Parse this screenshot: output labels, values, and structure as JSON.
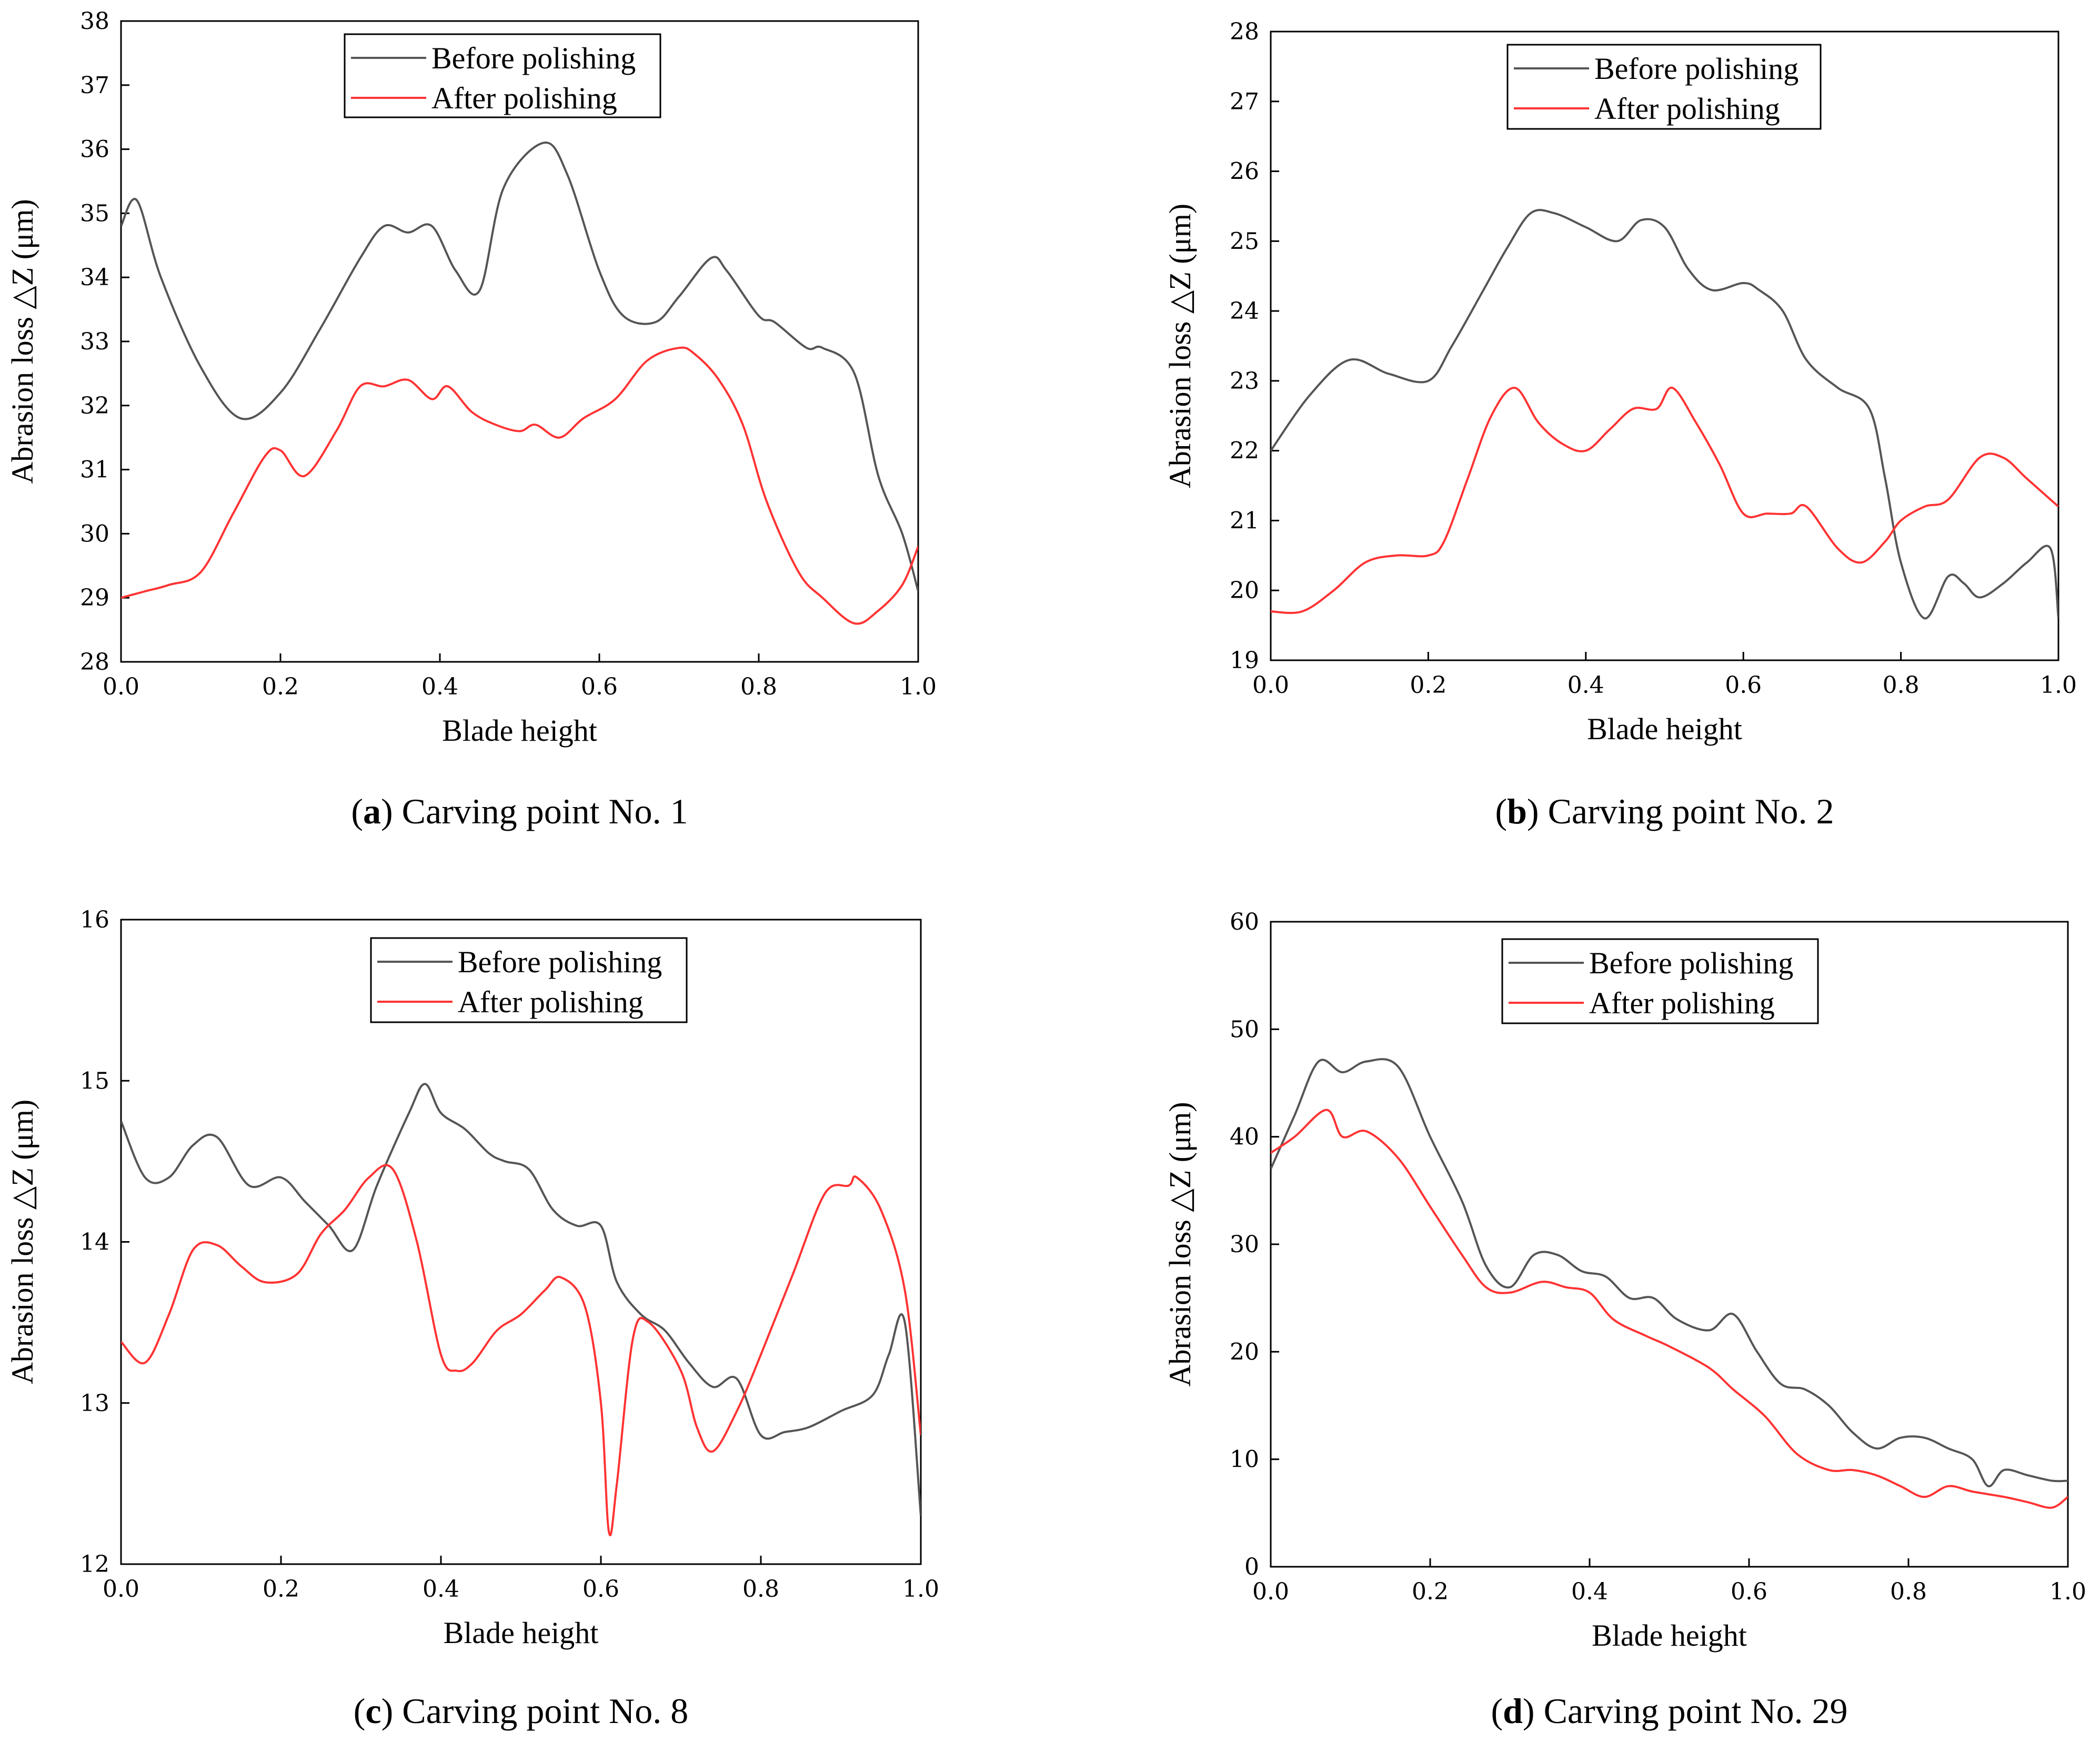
{
  "colors": {
    "before": "#555555",
    "after": "#ff3333",
    "axis": "#000000"
  },
  "chart_data": [
    {
      "type": "line",
      "caption_letter": "a",
      "caption_text": "Carving point No. 1",
      "xlabel": "Blade height",
      "ylabel": "Abrasion loss △Z (μm)",
      "xlim": [
        0,
        1
      ],
      "ylim": [
        28,
        38
      ],
      "xticks": [
        "0.0",
        "0.2",
        "0.4",
        "0.6",
        "0.8",
        "1.0"
      ],
      "yticks": [
        "28",
        "29",
        "30",
        "31",
        "32",
        "33",
        "34",
        "35",
        "36",
        "37",
        "38"
      ],
      "legend": "top-center",
      "series": [
        {
          "name": "Before polishing",
          "color": "#555555",
          "x": [
            0,
            0.02,
            0.05,
            0.1,
            0.15,
            0.2,
            0.25,
            0.3,
            0.33,
            0.36,
            0.39,
            0.42,
            0.45,
            0.48,
            0.53,
            0.56,
            0.6,
            0.63,
            0.67,
            0.7,
            0.74,
            0.76,
            0.8,
            0.82,
            0.86,
            0.88,
            0.92,
            0.95,
            0.98,
            1.0
          ],
          "y": [
            34.8,
            35.2,
            34,
            32.6,
            31.8,
            32.2,
            33.2,
            34.3,
            34.8,
            34.7,
            34.8,
            34.1,
            33.8,
            35.4,
            36.1,
            35.6,
            34.1,
            33.4,
            33.3,
            33.7,
            34.3,
            34.1,
            33.4,
            33.3,
            32.9,
            32.9,
            32.5,
            30.9,
            30,
            29.1
          ]
        },
        {
          "name": "After polishing",
          "color": "#ff3333",
          "x": [
            0,
            0.03,
            0.06,
            0.1,
            0.14,
            0.18,
            0.2,
            0.23,
            0.27,
            0.3,
            0.33,
            0.36,
            0.39,
            0.41,
            0.44,
            0.47,
            0.5,
            0.52,
            0.55,
            0.58,
            0.62,
            0.66,
            0.7,
            0.72,
            0.75,
            0.78,
            0.81,
            0.85,
            0.88,
            0.92,
            0.95,
            0.98,
            1.0
          ],
          "y": [
            29,
            29.1,
            29.2,
            29.4,
            30.3,
            31.2,
            31.3,
            30.9,
            31.6,
            32.3,
            32.3,
            32.4,
            32.1,
            32.3,
            31.9,
            31.7,
            31.6,
            31.7,
            31.5,
            31.8,
            32.1,
            32.7,
            32.9,
            32.8,
            32.4,
            31.7,
            30.5,
            29.4,
            29,
            28.6,
            28.8,
            29.2,
            29.8
          ]
        }
      ]
    },
    {
      "type": "line",
      "caption_letter": "b",
      "caption_text": "Carving point No. 2",
      "xlabel": "Blade height",
      "ylabel": "Abrasion loss △Z (μm)",
      "xlim": [
        0,
        1
      ],
      "ylim": [
        19,
        28
      ],
      "xticks": [
        "0.0",
        "0.2",
        "0.4",
        "0.6",
        "0.8",
        "1.0"
      ],
      "yticks": [
        "19",
        "20",
        "21",
        "22",
        "23",
        "24",
        "25",
        "26",
        "27",
        "28"
      ],
      "legend": "top-center",
      "series": [
        {
          "name": "Before polishing",
          "color": "#555555",
          "x": [
            0,
            0.05,
            0.1,
            0.15,
            0.2,
            0.23,
            0.27,
            0.3,
            0.33,
            0.36,
            0.4,
            0.44,
            0.47,
            0.5,
            0.53,
            0.56,
            0.6,
            0.62,
            0.65,
            0.68,
            0.72,
            0.76,
            0.78,
            0.8,
            0.83,
            0.86,
            0.88,
            0.9,
            0.93,
            0.96,
            0.99,
            1.0
          ],
          "y": [
            22,
            22.8,
            23.3,
            23.1,
            23,
            23.5,
            24.3,
            24.9,
            25.4,
            25.4,
            25.2,
            25,
            25.3,
            25.2,
            24.6,
            24.3,
            24.4,
            24.3,
            24,
            23.3,
            22.9,
            22.6,
            21.6,
            20.4,
            19.6,
            20.2,
            20.1,
            19.9,
            20.1,
            20.4,
            20.6,
            19.6
          ]
        },
        {
          "name": "After polishing",
          "color": "#ff3333",
          "x": [
            0,
            0.04,
            0.08,
            0.12,
            0.16,
            0.2,
            0.22,
            0.25,
            0.28,
            0.31,
            0.34,
            0.37,
            0.4,
            0.43,
            0.46,
            0.49,
            0.51,
            0.54,
            0.57,
            0.6,
            0.63,
            0.66,
            0.68,
            0.72,
            0.75,
            0.78,
            0.8,
            0.83,
            0.86,
            0.9,
            0.93,
            0.96,
            1.0
          ],
          "y": [
            19.7,
            19.7,
            20,
            20.4,
            20.5,
            20.5,
            20.7,
            21.6,
            22.5,
            22.9,
            22.4,
            22.1,
            22,
            22.3,
            22.6,
            22.6,
            22.9,
            22.4,
            21.8,
            21.1,
            21.1,
            21.1,
            21.2,
            20.6,
            20.4,
            20.7,
            21,
            21.2,
            21.3,
            21.9,
            21.9,
            21.6,
            21.2
          ]
        }
      ]
    },
    {
      "type": "line",
      "caption_letter": "c",
      "caption_text": "Carving point No. 8",
      "xlabel": "Blade height",
      "ylabel": "Abrasion loss △Z (μm)",
      "xlim": [
        0,
        1
      ],
      "ylim": [
        12,
        16
      ],
      "xticks": [
        "0.0",
        "0.2",
        "0.4",
        "0.6",
        "0.8",
        "1.0"
      ],
      "yticks": [
        "12",
        "13",
        "14",
        "15",
        "16"
      ],
      "legend": "top-center",
      "series": [
        {
          "name": "Before polishing",
          "color": "#555555",
          "x": [
            0,
            0.03,
            0.06,
            0.09,
            0.12,
            0.16,
            0.2,
            0.23,
            0.26,
            0.29,
            0.32,
            0.36,
            0.38,
            0.4,
            0.43,
            0.46,
            0.48,
            0.51,
            0.54,
            0.57,
            0.6,
            0.62,
            0.65,
            0.68,
            0.71,
            0.74,
            0.77,
            0.8,
            0.83,
            0.86,
            0.9,
            0.94,
            0.96,
            0.98,
            1.0
          ],
          "y": [
            14.75,
            14.4,
            14.4,
            14.6,
            14.65,
            14.35,
            14.4,
            14.25,
            14.1,
            13.95,
            14.35,
            14.8,
            14.98,
            14.8,
            14.7,
            14.55,
            14.5,
            14.45,
            14.2,
            14.1,
            14.1,
            13.75,
            13.55,
            13.45,
            13.25,
            13.1,
            13.15,
            12.8,
            12.82,
            12.85,
            12.95,
            13.05,
            13.3,
            13.5,
            12.3
          ]
        },
        {
          "name": "After polishing",
          "color": "#ff3333",
          "x": [
            0,
            0.03,
            0.06,
            0.09,
            0.12,
            0.15,
            0.18,
            0.22,
            0.25,
            0.28,
            0.31,
            0.34,
            0.37,
            0.4,
            0.42,
            0.44,
            0.47,
            0.5,
            0.53,
            0.55,
            0.58,
            0.6,
            0.61,
            0.62,
            0.64,
            0.66,
            0.7,
            0.72,
            0.74,
            0.77,
            0.8,
            0.84,
            0.88,
            0.91,
            0.92,
            0.95,
            0.98,
            1.0
          ],
          "y": [
            13.38,
            13.25,
            13.55,
            13.95,
            13.98,
            13.85,
            13.75,
            13.8,
            14.05,
            14.2,
            14.4,
            14.45,
            14.0,
            13.3,
            13.2,
            13.25,
            13.45,
            13.55,
            13.7,
            13.78,
            13.6,
            13.0,
            12.2,
            12.5,
            13.4,
            13.5,
            13.2,
            12.85,
            12.7,
            12.95,
            13.3,
            13.8,
            14.3,
            14.35,
            14.4,
            14.2,
            13.7,
            12.8
          ]
        }
      ]
    },
    {
      "type": "line",
      "caption_letter": "d",
      "caption_text": "Carving point No. 29",
      "xlabel": "Blade height",
      "ylabel": "Abrasion loss △Z (μm)",
      "xlim": [
        0,
        1
      ],
      "ylim": [
        0,
        60
      ],
      "xticks": [
        "0.0",
        "0.2",
        "0.4",
        "0.6",
        "0.8",
        "1.0"
      ],
      "yticks": [
        "0",
        "10",
        "20",
        "30",
        "40",
        "50",
        "60"
      ],
      "legend": "top-center",
      "series": [
        {
          "name": "Before polishing",
          "color": "#555555",
          "x": [
            0,
            0.03,
            0.06,
            0.09,
            0.12,
            0.16,
            0.2,
            0.24,
            0.27,
            0.3,
            0.33,
            0.36,
            0.39,
            0.42,
            0.45,
            0.48,
            0.51,
            0.55,
            0.58,
            0.61,
            0.64,
            0.67,
            0.7,
            0.73,
            0.76,
            0.79,
            0.82,
            0.85,
            0.88,
            0.9,
            0.92,
            0.95,
            0.98,
            1.0
          ],
          "y": [
            37,
            42,
            47,
            46,
            47,
            46.5,
            40,
            34,
            28,
            26,
            29,
            29,
            27.5,
            27,
            25,
            25,
            23,
            22,
            23.5,
            20,
            17,
            16.5,
            15,
            12.5,
            11,
            12,
            12,
            11,
            10,
            7.5,
            9,
            8.5,
            8,
            8
          ]
        },
        {
          "name": "After polishing",
          "color": "#ff3333",
          "x": [
            0,
            0.03,
            0.07,
            0.09,
            0.12,
            0.16,
            0.2,
            0.24,
            0.27,
            0.3,
            0.34,
            0.37,
            0.4,
            0.43,
            0.47,
            0.5,
            0.55,
            0.58,
            0.62,
            0.66,
            0.7,
            0.73,
            0.76,
            0.79,
            0.82,
            0.85,
            0.88,
            0.92,
            0.95,
            0.98,
            1.0
          ],
          "y": [
            38.5,
            40,
            42.5,
            40,
            40.5,
            38,
            33.5,
            29,
            26,
            25.5,
            26.5,
            26,
            25.5,
            23,
            21.5,
            20.5,
            18.5,
            16.5,
            14,
            10.5,
            9,
            9,
            8.5,
            7.5,
            6.5,
            7.5,
            7,
            6.5,
            6,
            5.5,
            6.5
          ]
        }
      ]
    }
  ]
}
